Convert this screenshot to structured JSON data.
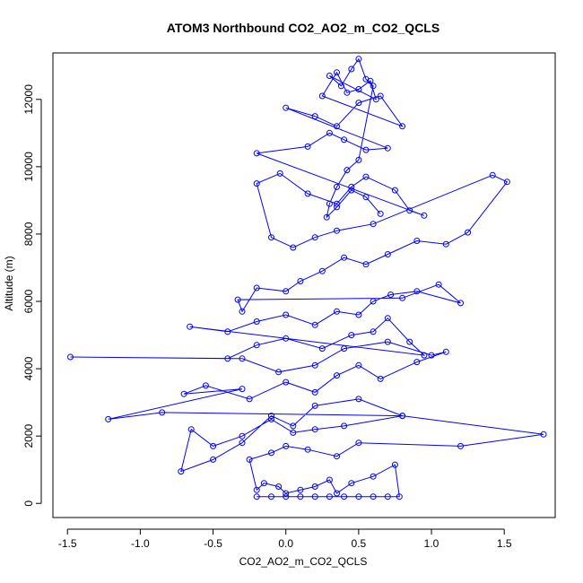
{
  "chart_data": {
    "type": "scatter",
    "title": "ATOM3 Northbound CO2_AO2_m_CO2_QCLS",
    "xlabel": "CO2_AO2_m_CO2_QCLS",
    "ylabel": "Altitude (m)",
    "xlim": [
      -1.6,
      1.85
    ],
    "ylim": [
      -420,
      13380
    ],
    "x_ticks": [
      -1.5,
      -1.0,
      -0.5,
      0.0,
      0.5,
      1.0,
      1.5
    ],
    "x_tick_labels": [
      "-1.5",
      "-1.0",
      "-0.5",
      "0.0",
      "0.5",
      "1.0",
      "1.5"
    ],
    "y_ticks": [
      0,
      2000,
      4000,
      6000,
      8000,
      10000,
      12000
    ],
    "y_tick_labels": [
      "0",
      "2000",
      "4000",
      "6000",
      "8000",
      "10000",
      "12000"
    ],
    "grid": false,
    "legend": "none",
    "line_style": "lines connecting points, open circle markers",
    "series": [
      {
        "color": "#0000ff",
        "x": [
          -0.2,
          -0.1,
          0.0,
          0.1,
          0.2,
          0.3,
          0.4,
          0.5,
          0.6,
          0.7,
          0.78,
          0.75,
          0.6,
          0.45,
          0.35,
          0.3,
          0.2,
          0.1,
          0.0,
          -0.05,
          -0.15,
          -0.2,
          -0.25,
          -0.1,
          0.0,
          0.15,
          0.35,
          0.5,
          1.2,
          1.77,
          0.8,
          0.4,
          0.2,
          0.05,
          -0.1,
          -0.3,
          -0.5,
          -0.65,
          -0.72,
          -0.5,
          -0.3,
          -0.1,
          0.05,
          0.2,
          0.5,
          0.8,
          -0.85,
          -1.22,
          -0.3,
          -0.7,
          -0.55,
          -0.25,
          0.0,
          0.2,
          0.35,
          0.5,
          0.65,
          0.9,
          1.1,
          1.0,
          0.7,
          0.4,
          0.2,
          -0.05,
          -0.3,
          -1.48,
          -0.4,
          -0.2,
          0.0,
          0.25,
          0.45,
          0.6,
          0.7,
          0.85,
          0.95,
          -0.66,
          -0.4,
          -0.2,
          0.0,
          0.2,
          0.35,
          0.5,
          0.6,
          0.72,
          0.9,
          1.2,
          1.05,
          0.8,
          -0.33,
          -0.3,
          -0.2,
          0.0,
          0.1,
          0.25,
          0.4,
          0.55,
          0.7,
          0.9,
          1.1,
          1.25,
          1.52,
          1.42,
          0.6,
          0.35,
          0.2,
          0.05,
          -0.1,
          -0.2,
          -0.04,
          0.15,
          0.35,
          0.45,
          0.55,
          0.75,
          0.85,
          0.95,
          -0.2,
          0.15,
          0.3,
          0.4,
          0.55,
          0.7,
          0.0,
          0.2,
          0.35,
          0.5,
          0.65,
          0.8,
          0.25,
          0.35,
          0.42,
          0.5,
          0.58,
          0.62,
          0.3,
          0.38,
          0.45,
          0.5,
          0.55,
          0.6,
          0.5,
          0.42,
          0.35,
          0.3,
          0.28,
          0.35,
          0.45,
          0.55,
          0.65
        ],
        "y": [
          200,
          200,
          200,
          200,
          200,
          200,
          200,
          200,
          200,
          200,
          200,
          1150,
          800,
          600,
          300,
          700,
          500,
          400,
          300,
          500,
          600,
          400,
          1300,
          1500,
          1700,
          1600,
          1400,
          1800,
          1700,
          2050,
          2600,
          2300,
          2200,
          2100,
          2500,
          2000,
          1700,
          2200,
          950,
          1300,
          1800,
          2600,
          2300,
          2900,
          3100,
          2600,
          2700,
          2500,
          3400,
          3250,
          3500,
          3100,
          3600,
          3300,
          3800,
          4100,
          3700,
          4200,
          4500,
          4400,
          4800,
          4600,
          4100,
          3900,
          4300,
          4350,
          4300,
          4700,
          4900,
          4600,
          5000,
          5100,
          5500,
          4800,
          4400,
          5250,
          5100,
          5400,
          5600,
          5300,
          5700,
          5600,
          6000,
          6200,
          6300,
          5950,
          6500,
          6100,
          6050,
          5700,
          6400,
          6300,
          6600,
          6900,
          7300,
          7100,
          7400,
          7800,
          7700,
          8050,
          9550,
          9750,
          8300,
          8100,
          7900,
          7600,
          7900,
          9500,
          9800,
          9200,
          8900,
          9400,
          9700,
          9300,
          8700,
          8550,
          10400,
          10600,
          11000,
          10800,
          10500,
          10550,
          11750,
          11500,
          11200,
          11900,
          12100,
          11200,
          12100,
          12800,
          12200,
          12300,
          12550,
          12000,
          12700,
          12400,
          12900,
          13200,
          12600,
          12400,
          10200,
          9900,
          9400,
          8900,
          8500,
          8800,
          9300,
          9100,
          8600
        ]
      }
    ]
  }
}
